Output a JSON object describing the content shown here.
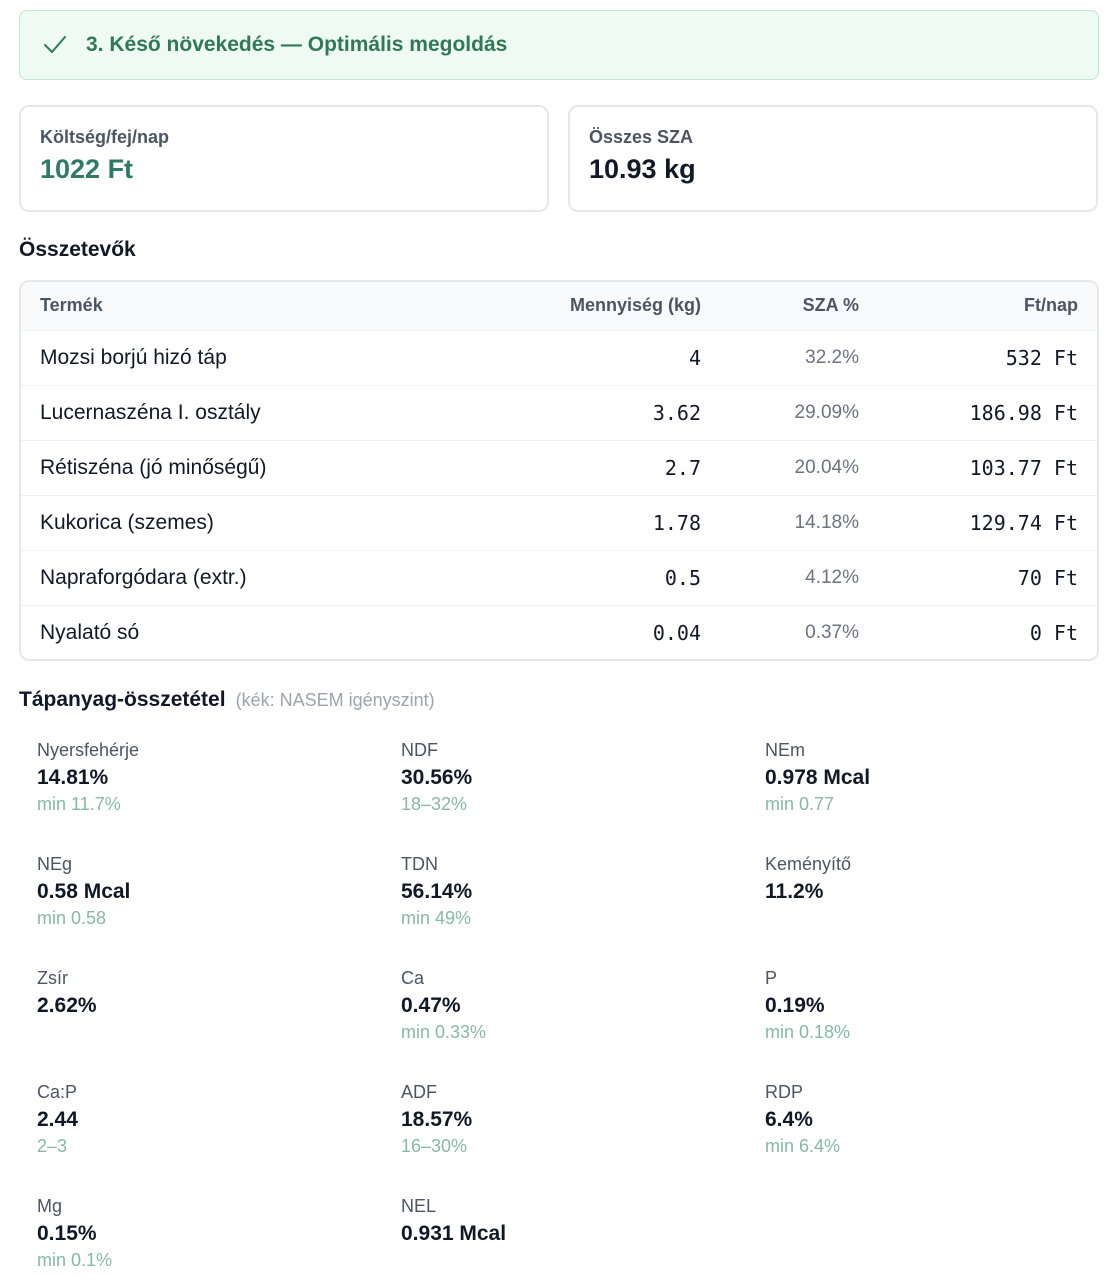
{
  "banner": {
    "title": "3. Késő növekedés — Optimális megoldás"
  },
  "summary": {
    "cost_label": "Költség/fej/nap",
    "cost_value": "1022 Ft",
    "sza_label": "Összes SZA",
    "sza_value": "10.93 kg"
  },
  "ingredients": {
    "title": "Összetevők",
    "columns": {
      "product": "Termék",
      "qty": "Mennyiség (kg)",
      "pct": "SZA %",
      "cost": "Ft/nap"
    },
    "rows": [
      {
        "name": "Mozsi borjú hizó táp",
        "qty": "4",
        "pct": "32.2%",
        "cost": "532 Ft"
      },
      {
        "name": "Lucernaszéna I. osztály",
        "qty": "3.62",
        "pct": "29.09%",
        "cost": "186.98 Ft"
      },
      {
        "name": "Rétiszéna (jó minőségű)",
        "qty": "2.7",
        "pct": "20.04%",
        "cost": "103.77 Ft"
      },
      {
        "name": "Kukorica (szemes)",
        "qty": "1.78",
        "pct": "14.18%",
        "cost": "129.74 Ft"
      },
      {
        "name": "Napraforgódara (extr.)",
        "qty": "0.5",
        "pct": "4.12%",
        "cost": "70 Ft"
      },
      {
        "name": "Nyalató só",
        "qty": "0.04",
        "pct": "0.37%",
        "cost": "0 Ft"
      }
    ]
  },
  "nutrients": {
    "title": "Tápanyag-összetétel",
    "hint": "(kék: NASEM igényszint)",
    "items": [
      {
        "label": "Nyersfehérje",
        "value": "14.81%",
        "req": "min 11.7%"
      },
      {
        "label": "NDF",
        "value": "30.56%",
        "req": "18–32%"
      },
      {
        "label": "NEm",
        "value": "0.978 Mcal",
        "req": "min 0.77"
      },
      {
        "label": "NEg",
        "value": "0.58 Mcal",
        "req": "min 0.58"
      },
      {
        "label": "TDN",
        "value": "56.14%",
        "req": "min 49%"
      },
      {
        "label": "Keményítő",
        "value": "11.2%",
        "req": ""
      },
      {
        "label": "Zsír",
        "value": "2.62%",
        "req": ""
      },
      {
        "label": "Ca",
        "value": "0.47%",
        "req": "min 0.33%"
      },
      {
        "label": "P",
        "value": "0.19%",
        "req": "min 0.18%"
      },
      {
        "label": "Ca:P",
        "value": "2.44",
        "req": "2–3"
      },
      {
        "label": "ADF",
        "value": "18.57%",
        "req": "16–30%"
      },
      {
        "label": "RDP",
        "value": "6.4%",
        "req": "min 6.4%"
      },
      {
        "label": "Mg",
        "value": "0.15%",
        "req": "min 0.1%"
      },
      {
        "label": "NEL",
        "value": "0.931 Mcal",
        "req": ""
      }
    ]
  }
}
